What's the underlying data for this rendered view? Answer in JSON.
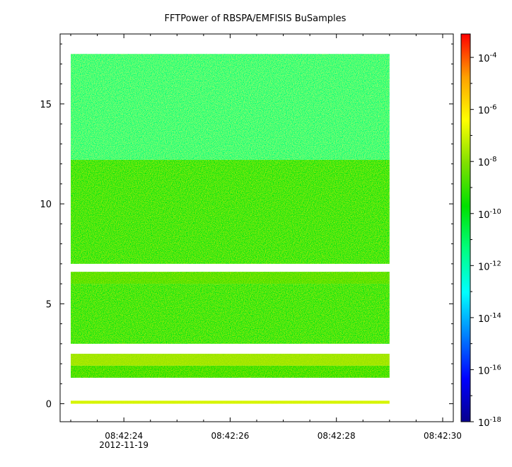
{
  "chart_data": {
    "type": "heatmap",
    "title": "FFTPower of RBSPA/EMFISIS  BuSamples",
    "xlabel": "",
    "ylabel": "",
    "x_ticks": [
      {
        "label": "08:42:24",
        "sublabel": "2012-11-19",
        "seconds": 24
      },
      {
        "label": "08:42:26",
        "sublabel": "",
        "seconds": 26
      },
      {
        "label": "08:42:28",
        "sublabel": "",
        "seconds": 28
      },
      {
        "label": "08:42:30",
        "sublabel": "",
        "seconds": 30
      }
    ],
    "xlim_seconds": [
      22.8,
      30.2
    ],
    "data_x_range_seconds": [
      23.0,
      29.0
    ],
    "y_ticks": [
      0,
      5,
      10,
      15
    ],
    "ylim": [
      -0.9,
      18.5
    ],
    "data_y_range": [
      0.0,
      17.5
    ],
    "colorbar": {
      "scale": "log",
      "range_exponent": [
        -18,
        -3.1
      ],
      "tick_exponents": [
        -4,
        -6,
        -8,
        -10,
        -12,
        -14,
        -16,
        -18
      ],
      "tick_base": "10",
      "colors": [
        "#08008c",
        "#0000ff",
        "#0080ff",
        "#00ffff",
        "#00ff80",
        "#00e000",
        "#80e000",
        "#ffff00",
        "#ffa000",
        "#ff0000"
      ]
    },
    "spectrogram_bands": [
      {
        "y_from": 12.2,
        "y_to": 17.5,
        "log10_power": -11.3
      },
      {
        "y_from": 7.0,
        "y_to": 12.2,
        "log10_power": -10.0
      },
      {
        "y_from": 6.0,
        "y_to": 6.6,
        "log10_power": -9.0
      },
      {
        "y_from": 3.0,
        "y_to": 6.0,
        "log10_power": -10.0
      },
      {
        "y_from": 1.9,
        "y_to": 2.5,
        "log10_power": -7.8
      },
      {
        "y_from": 1.3,
        "y_to": 1.9,
        "log10_power": -9.5
      },
      {
        "y_from": 0.0,
        "y_to": 0.15,
        "log10_power": -7.0
      }
    ]
  }
}
